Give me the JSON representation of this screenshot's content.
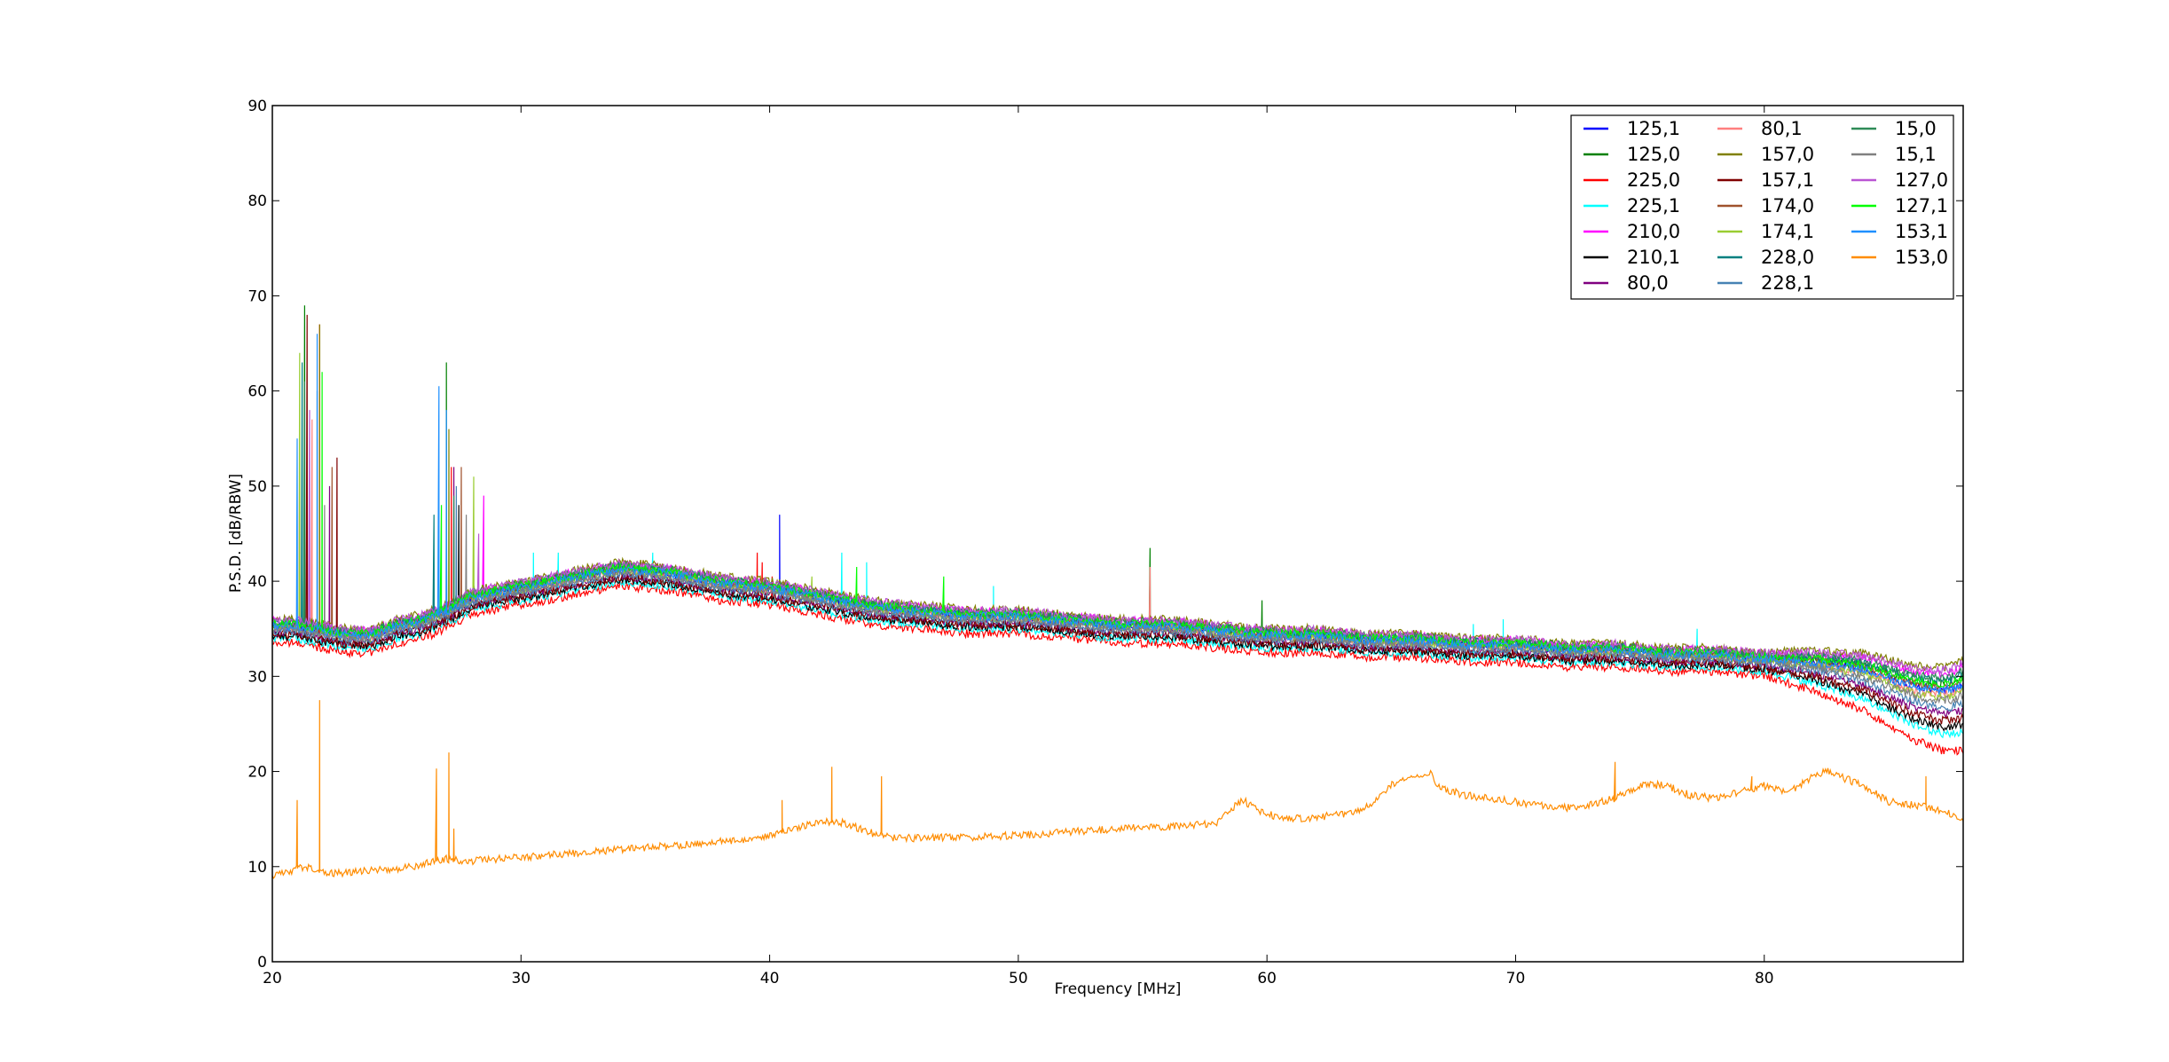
{
  "chart_data": {
    "type": "line",
    "title": "",
    "xlabel": "Frequency [MHz]",
    "ylabel": "P.S.D. [dB/RBW]",
    "xlim": [
      20,
      88
    ],
    "ylim": [
      0,
      90
    ],
    "x_ticks": [
      20,
      30,
      40,
      50,
      60,
      70,
      80
    ],
    "y_ticks": [
      0,
      10,
      20,
      30,
      40,
      50,
      60,
      70,
      80,
      90
    ],
    "grid": false,
    "legend_position": "top-right",
    "legend_columns": 3,
    "shared_profile": {
      "x": [
        20,
        21,
        22,
        23,
        24,
        25,
        26,
        27,
        28,
        29,
        30,
        32,
        34,
        36,
        38,
        40,
        42,
        44,
        46,
        48,
        50,
        52,
        54,
        56,
        58,
        60,
        62,
        64,
        66,
        68,
        70,
        72,
        74,
        76,
        78,
        80,
        82,
        84,
        85,
        86,
        87,
        87.5,
        88
      ],
      "y": [
        35,
        35,
        34.5,
        34,
        34,
        35,
        35.5,
        36.5,
        38,
        38.5,
        39,
        40,
        41,
        40.5,
        39.5,
        39,
        38,
        37,
        36.5,
        36,
        36,
        35.5,
        35,
        35,
        34.5,
        34,
        34,
        33.5,
        33.5,
        33,
        33,
        32.5,
        32.5,
        32,
        32,
        31.5,
        31,
        30,
        29,
        28,
        27.5,
        27.5,
        28
      ]
    },
    "series": [
      {
        "name": "125,1",
        "color": "#0000ff",
        "offset": 0.3,
        "peaks": [
          [
            40.4,
            47
          ],
          [
            21.2,
            40
          ],
          [
            27,
            50
          ]
        ]
      },
      {
        "name": "125,0",
        "color": "#008000",
        "offset": 0.5,
        "peaks": [
          [
            55.3,
            43.5
          ],
          [
            59.8,
            38
          ],
          [
            21.3,
            69
          ],
          [
            27,
            63
          ]
        ]
      },
      {
        "name": "225,0",
        "color": "#ff0000",
        "offset": -1.5,
        "peaks": [
          [
            39.5,
            43
          ],
          [
            39.7,
            42
          ],
          [
            40.1,
            40.5
          ],
          [
            21.9,
            67
          ],
          [
            27.2,
            52
          ]
        ]
      },
      {
        "name": "225,1",
        "color": "#00ffff",
        "offset": -1.0,
        "peaks": [
          [
            42.9,
            43
          ],
          [
            43.9,
            42
          ],
          [
            49,
            39.5
          ],
          [
            68.3,
            35.5
          ],
          [
            69.5,
            36
          ],
          [
            77.3,
            35
          ],
          [
            30.5,
            43
          ],
          [
            31.5,
            43
          ],
          [
            35.3,
            43
          ]
        ]
      },
      {
        "name": "210,0",
        "color": "#ff00ff",
        "offset": 0.8,
        "peaks": [
          [
            21.1,
            55
          ],
          [
            28.5,
            49
          ]
        ]
      },
      {
        "name": "210,1",
        "color": "#000000",
        "offset": -0.8,
        "peaks": [
          [
            21.3,
            45
          ],
          [
            27.5,
            48
          ]
        ]
      },
      {
        "name": "80,0",
        "color": "#800080",
        "offset": -0.4,
        "peaks": [
          [
            22.3,
            50
          ],
          [
            27.3,
            52
          ]
        ]
      },
      {
        "name": "80,1",
        "color": "#ff7f7f",
        "offset": 0.2,
        "peaks": [
          [
            55.3,
            41.5
          ],
          [
            21.6,
            57
          ]
        ]
      },
      {
        "name": "157,0",
        "color": "#808000",
        "offset": 1.0,
        "peaks": [
          [
            21.9,
            67
          ],
          [
            27.1,
            56
          ]
        ]
      },
      {
        "name": "157,1",
        "color": "#800000",
        "offset": -0.6,
        "peaks": [
          [
            21.4,
            68
          ],
          [
            22.6,
            53
          ]
        ]
      },
      {
        "name": "174,0",
        "color": "#a0522d",
        "offset": 0.4,
        "peaks": [
          [
            22.4,
            52
          ],
          [
            27.6,
            52
          ]
        ]
      },
      {
        "name": "174,1",
        "color": "#9acd32",
        "offset": 0.1,
        "peaks": [
          [
            41.7,
            40.5
          ],
          [
            21.1,
            64
          ],
          [
            28.1,
            51
          ]
        ]
      },
      {
        "name": "228,0",
        "color": "#008080",
        "offset": 0.6,
        "peaks": [
          [
            21.2,
            63
          ],
          [
            26.5,
            47
          ]
        ]
      },
      {
        "name": "228,1",
        "color": "#4682b4",
        "offset": -0.2,
        "peaks": [
          [
            21.8,
            60
          ],
          [
            27.4,
            50
          ]
        ]
      },
      {
        "name": "15,0",
        "color": "#2e8b57",
        "offset": 0.7,
        "peaks": [
          [
            21.3,
            61
          ],
          [
            27.3,
            49
          ]
        ]
      },
      {
        "name": "15,1",
        "color": "#808080",
        "offset": 0.0,
        "peaks": [
          [
            22.1,
            48
          ],
          [
            27.8,
            47
          ]
        ]
      },
      {
        "name": "127,0",
        "color": "#ba55d3",
        "offset": 0.9,
        "peaks": [
          [
            21.5,
            58
          ],
          [
            28.3,
            45
          ]
        ]
      },
      {
        "name": "127,1",
        "color": "#00ff00",
        "offset": 0.5,
        "peaks": [
          [
            43.5,
            41.5
          ],
          [
            47,
            40.5
          ],
          [
            22.0,
            62
          ],
          [
            26.8,
            48
          ]
        ]
      },
      {
        "name": "153,1",
        "color": "#1e90ff",
        "offset": 0.3,
        "peaks": [
          [
            21.8,
            66
          ],
          [
            26.7,
            60.5
          ],
          [
            27.0,
            58
          ],
          [
            21.0,
            55
          ]
        ]
      },
      {
        "name": "153,0",
        "color": "#ff8c00",
        "x": [
          20,
          20.5,
          21,
          21.5,
          22,
          22.5,
          23,
          24,
          25,
          26,
          27,
          28,
          29,
          30,
          32,
          34,
          36,
          38,
          40,
          41,
          42,
          43,
          44,
          45,
          46,
          48,
          50,
          52,
          54,
          56,
          57,
          58,
          59,
          60,
          61,
          62,
          63,
          64,
          65,
          66,
          66.5,
          67,
          68,
          69,
          70,
          71,
          72,
          73,
          74,
          75,
          76,
          77,
          78,
          79,
          80,
          81,
          82,
          82.5,
          83,
          84,
          85,
          86,
          87,
          88
        ],
        "y": [
          9,
          9.3,
          9.8,
          10,
          9.5,
          9.3,
          9.3,
          9.6,
          9.8,
          10.2,
          10.8,
          10.6,
          10.8,
          11,
          11.4,
          11.8,
          12.2,
          12.6,
          13.2,
          14,
          14.8,
          14.6,
          13.6,
          13,
          13,
          13.1,
          13.3,
          13.6,
          14,
          14.2,
          14.3,
          14.6,
          17,
          15.5,
          15,
          15.2,
          15.5,
          16.2,
          18.6,
          19.5,
          20,
          18.2,
          17.5,
          17.2,
          16.8,
          16.5,
          16.2,
          16.5,
          17.2,
          18.5,
          18.6,
          17.5,
          17.2,
          17.8,
          18.5,
          17.8,
          19.5,
          20.2,
          19.5,
          18.5,
          16.8,
          16.5,
          16,
          15
        ],
        "peaks": [
          [
            21,
            17
          ],
          [
            21.9,
            27.5
          ],
          [
            26.6,
            20.3
          ],
          [
            27.1,
            22
          ],
          [
            27.3,
            14
          ],
          [
            42.5,
            20.5
          ],
          [
            44.5,
            19.5
          ],
          [
            40.5,
            17
          ],
          [
            74,
            21
          ],
          [
            79.5,
            19.5
          ],
          [
            86.5,
            19.5
          ]
        ]
      }
    ]
  }
}
